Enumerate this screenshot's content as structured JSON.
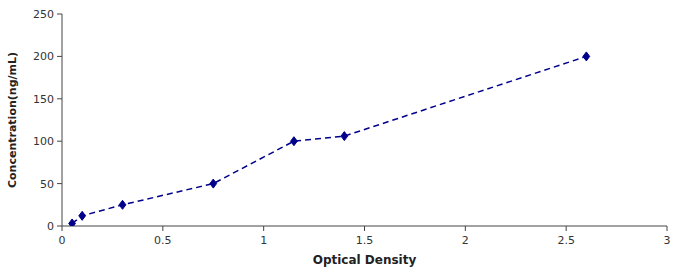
{
  "chart_data": {
    "type": "line",
    "x": [
      0.05,
      0.1,
      0.3,
      0.75,
      1.15,
      1.4,
      2.6
    ],
    "values": [
      3,
      12,
      25,
      50,
      100,
      106,
      200
    ],
    "xlim": [
      0,
      3
    ],
    "ylim": [
      0,
      250
    ],
    "xticks": [
      0,
      0.5,
      1,
      1.5,
      2,
      2.5,
      3
    ],
    "yticks": [
      0,
      50,
      100,
      150,
      200,
      250
    ],
    "xlabel": "Optical Density",
    "ylabel": "Concentration(ng/mL)",
    "color": "#00008B",
    "marker": "diamond",
    "line_style": "dashed",
    "grid": false
  }
}
